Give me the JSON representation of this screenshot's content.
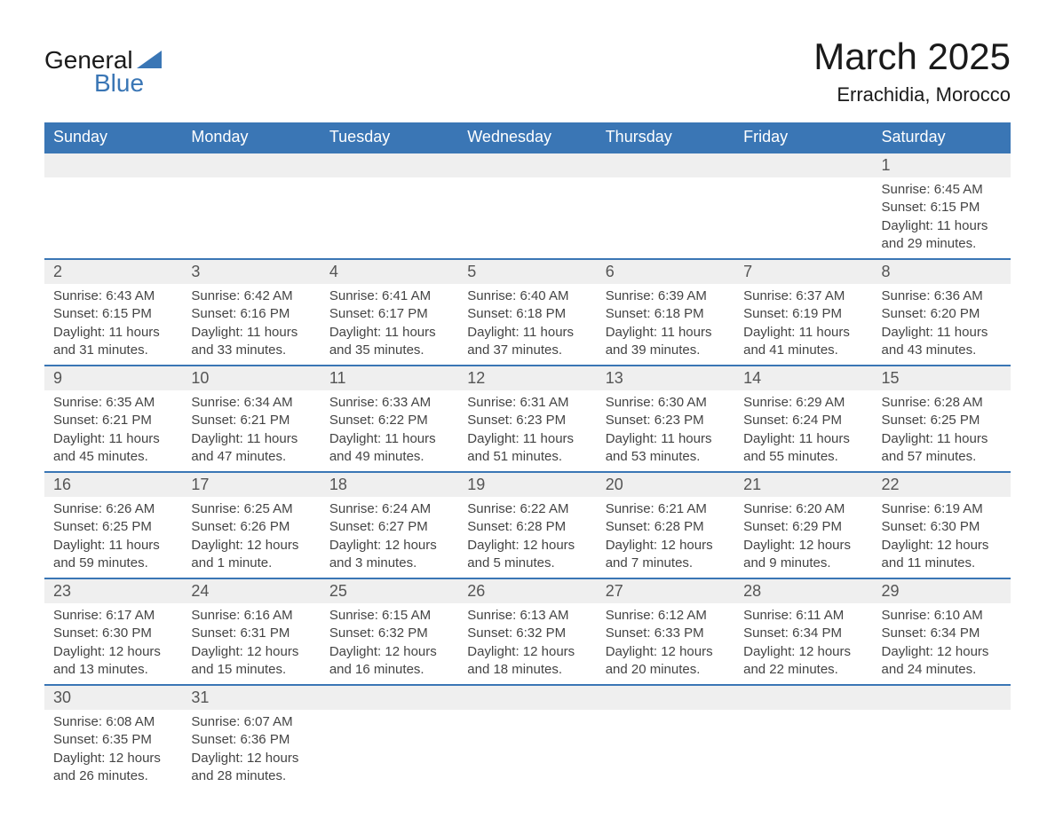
{
  "logo": {
    "text1": "General",
    "text2": "Blue",
    "accent": "#3a76b5"
  },
  "title": "March 2025",
  "location": "Errachidia, Morocco",
  "colors": {
    "header_bg": "#3a76b5",
    "header_text": "#ffffff",
    "daynum_bg": "#efefef",
    "row_border": "#3a76b5",
    "body_text": "#444444",
    "daynum_text": "#555555",
    "page_bg": "#ffffff"
  },
  "typography": {
    "title_fontsize": 42,
    "location_fontsize": 22,
    "header_fontsize": 18,
    "daynum_fontsize": 18,
    "data_fontsize": 15,
    "font_family": "Arial"
  },
  "weekdays": [
    "Sunday",
    "Monday",
    "Tuesday",
    "Wednesday",
    "Thursday",
    "Friday",
    "Saturday"
  ],
  "weeks": [
    [
      null,
      null,
      null,
      null,
      null,
      null,
      {
        "n": "1",
        "sunrise": "Sunrise: 6:45 AM",
        "sunset": "Sunset: 6:15 PM",
        "daylight": "Daylight: 11 hours and 29 minutes."
      }
    ],
    [
      {
        "n": "2",
        "sunrise": "Sunrise: 6:43 AM",
        "sunset": "Sunset: 6:15 PM",
        "daylight": "Daylight: 11 hours and 31 minutes."
      },
      {
        "n": "3",
        "sunrise": "Sunrise: 6:42 AM",
        "sunset": "Sunset: 6:16 PM",
        "daylight": "Daylight: 11 hours and 33 minutes."
      },
      {
        "n": "4",
        "sunrise": "Sunrise: 6:41 AM",
        "sunset": "Sunset: 6:17 PM",
        "daylight": "Daylight: 11 hours and 35 minutes."
      },
      {
        "n": "5",
        "sunrise": "Sunrise: 6:40 AM",
        "sunset": "Sunset: 6:18 PM",
        "daylight": "Daylight: 11 hours and 37 minutes."
      },
      {
        "n": "6",
        "sunrise": "Sunrise: 6:39 AM",
        "sunset": "Sunset: 6:18 PM",
        "daylight": "Daylight: 11 hours and 39 minutes."
      },
      {
        "n": "7",
        "sunrise": "Sunrise: 6:37 AM",
        "sunset": "Sunset: 6:19 PM",
        "daylight": "Daylight: 11 hours and 41 minutes."
      },
      {
        "n": "8",
        "sunrise": "Sunrise: 6:36 AM",
        "sunset": "Sunset: 6:20 PM",
        "daylight": "Daylight: 11 hours and 43 minutes."
      }
    ],
    [
      {
        "n": "9",
        "sunrise": "Sunrise: 6:35 AM",
        "sunset": "Sunset: 6:21 PM",
        "daylight": "Daylight: 11 hours and 45 minutes."
      },
      {
        "n": "10",
        "sunrise": "Sunrise: 6:34 AM",
        "sunset": "Sunset: 6:21 PM",
        "daylight": "Daylight: 11 hours and 47 minutes."
      },
      {
        "n": "11",
        "sunrise": "Sunrise: 6:33 AM",
        "sunset": "Sunset: 6:22 PM",
        "daylight": "Daylight: 11 hours and 49 minutes."
      },
      {
        "n": "12",
        "sunrise": "Sunrise: 6:31 AM",
        "sunset": "Sunset: 6:23 PM",
        "daylight": "Daylight: 11 hours and 51 minutes."
      },
      {
        "n": "13",
        "sunrise": "Sunrise: 6:30 AM",
        "sunset": "Sunset: 6:23 PM",
        "daylight": "Daylight: 11 hours and 53 minutes."
      },
      {
        "n": "14",
        "sunrise": "Sunrise: 6:29 AM",
        "sunset": "Sunset: 6:24 PM",
        "daylight": "Daylight: 11 hours and 55 minutes."
      },
      {
        "n": "15",
        "sunrise": "Sunrise: 6:28 AM",
        "sunset": "Sunset: 6:25 PM",
        "daylight": "Daylight: 11 hours and 57 minutes."
      }
    ],
    [
      {
        "n": "16",
        "sunrise": "Sunrise: 6:26 AM",
        "sunset": "Sunset: 6:25 PM",
        "daylight": "Daylight: 11 hours and 59 minutes."
      },
      {
        "n": "17",
        "sunrise": "Sunrise: 6:25 AM",
        "sunset": "Sunset: 6:26 PM",
        "daylight": "Daylight: 12 hours and 1 minute."
      },
      {
        "n": "18",
        "sunrise": "Sunrise: 6:24 AM",
        "sunset": "Sunset: 6:27 PM",
        "daylight": "Daylight: 12 hours and 3 minutes."
      },
      {
        "n": "19",
        "sunrise": "Sunrise: 6:22 AM",
        "sunset": "Sunset: 6:28 PM",
        "daylight": "Daylight: 12 hours and 5 minutes."
      },
      {
        "n": "20",
        "sunrise": "Sunrise: 6:21 AM",
        "sunset": "Sunset: 6:28 PM",
        "daylight": "Daylight: 12 hours and 7 minutes."
      },
      {
        "n": "21",
        "sunrise": "Sunrise: 6:20 AM",
        "sunset": "Sunset: 6:29 PM",
        "daylight": "Daylight: 12 hours and 9 minutes."
      },
      {
        "n": "22",
        "sunrise": "Sunrise: 6:19 AM",
        "sunset": "Sunset: 6:30 PM",
        "daylight": "Daylight: 12 hours and 11 minutes."
      }
    ],
    [
      {
        "n": "23",
        "sunrise": "Sunrise: 6:17 AM",
        "sunset": "Sunset: 6:30 PM",
        "daylight": "Daylight: 12 hours and 13 minutes."
      },
      {
        "n": "24",
        "sunrise": "Sunrise: 6:16 AM",
        "sunset": "Sunset: 6:31 PM",
        "daylight": "Daylight: 12 hours and 15 minutes."
      },
      {
        "n": "25",
        "sunrise": "Sunrise: 6:15 AM",
        "sunset": "Sunset: 6:32 PM",
        "daylight": "Daylight: 12 hours and 16 minutes."
      },
      {
        "n": "26",
        "sunrise": "Sunrise: 6:13 AM",
        "sunset": "Sunset: 6:32 PM",
        "daylight": "Daylight: 12 hours and 18 minutes."
      },
      {
        "n": "27",
        "sunrise": "Sunrise: 6:12 AM",
        "sunset": "Sunset: 6:33 PM",
        "daylight": "Daylight: 12 hours and 20 minutes."
      },
      {
        "n": "28",
        "sunrise": "Sunrise: 6:11 AM",
        "sunset": "Sunset: 6:34 PM",
        "daylight": "Daylight: 12 hours and 22 minutes."
      },
      {
        "n": "29",
        "sunrise": "Sunrise: 6:10 AM",
        "sunset": "Sunset: 6:34 PM",
        "daylight": "Daylight: 12 hours and 24 minutes."
      }
    ],
    [
      {
        "n": "30",
        "sunrise": "Sunrise: 6:08 AM",
        "sunset": "Sunset: 6:35 PM",
        "daylight": "Daylight: 12 hours and 26 minutes."
      },
      {
        "n": "31",
        "sunrise": "Sunrise: 6:07 AM",
        "sunset": "Sunset: 6:36 PM",
        "daylight": "Daylight: 12 hours and 28 minutes."
      },
      null,
      null,
      null,
      null,
      null
    ]
  ]
}
